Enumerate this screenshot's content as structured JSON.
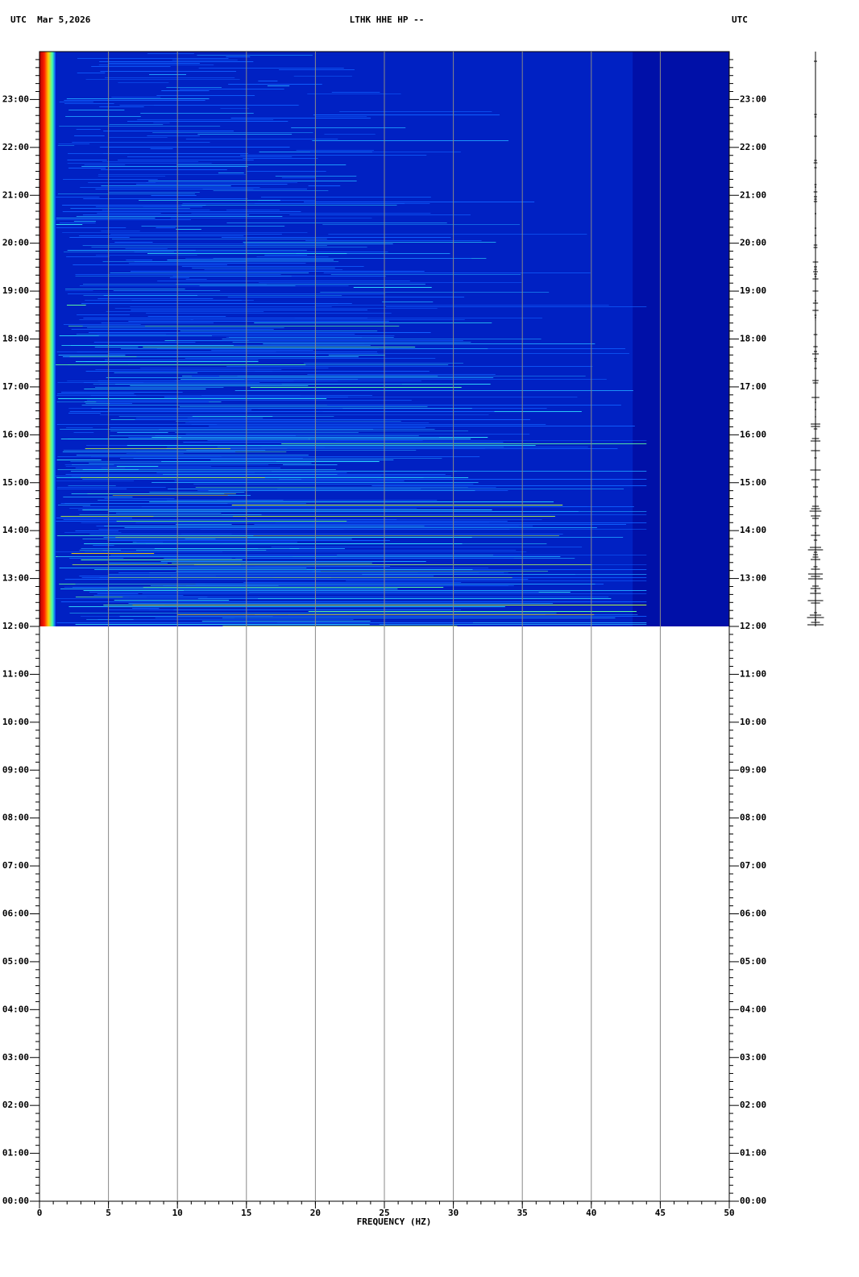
{
  "chart_data": {
    "type": "spectrogram",
    "title": "LTHK HHE HP --",
    "left_header": "UTC  Mar 5,2026",
    "right_header": "UTC",
    "x_label": "FREQUENCY (HZ)",
    "xlim": [
      0,
      50
    ],
    "xticks": [
      0,
      5,
      10,
      15,
      20,
      25,
      30,
      35,
      40,
      45,
      50
    ],
    "ylim": [
      0,
      24
    ],
    "yticks": [
      {
        "value": 0,
        "label": "00:00"
      },
      {
        "value": 1,
        "label": "01:00"
      },
      {
        "value": 2,
        "label": "02:00"
      },
      {
        "value": 3,
        "label": "03:00"
      },
      {
        "value": 4,
        "label": "04:00"
      },
      {
        "value": 5,
        "label": "05:00"
      },
      {
        "value": 6,
        "label": "06:00"
      },
      {
        "value": 7,
        "label": "07:00"
      },
      {
        "value": 8,
        "label": "08:00"
      },
      {
        "value": 9,
        "label": "09:00"
      },
      {
        "value": 10,
        "label": "10:00"
      },
      {
        "value": 11,
        "label": "11:00"
      },
      {
        "value": 12,
        "label": "12:00"
      },
      {
        "value": 13,
        "label": "13:00"
      },
      {
        "value": 14,
        "label": "14:00"
      },
      {
        "value": 15,
        "label": "15:00"
      },
      {
        "value": 16,
        "label": "16:00"
      },
      {
        "value": 17,
        "label": "17:00"
      },
      {
        "value": 18,
        "label": "18:00"
      },
      {
        "value": 19,
        "label": "19:00"
      },
      {
        "value": 20,
        "label": "20:00"
      },
      {
        "value": 21,
        "label": "21:00"
      },
      {
        "value": 22,
        "label": "22:00"
      },
      {
        "value": 23,
        "label": "23:00"
      }
    ],
    "coverage": [
      12,
      24
    ],
    "grid": true
  }
}
